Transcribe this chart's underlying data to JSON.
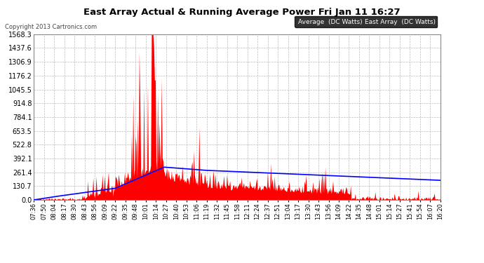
{
  "title": "East Array Actual & Running Average Power Fri Jan 11 16:27",
  "copyright": "Copyright 2013 Cartronics.com",
  "legend_label_avg": "Average  (DC Watts)",
  "legend_label_east": "East Array  (DC Watts)",
  "ylabel_values": [
    0.0,
    130.7,
    261.4,
    392.1,
    522.8,
    653.5,
    784.1,
    914.8,
    1045.5,
    1176.2,
    1306.9,
    1437.6,
    1568.3
  ],
  "ymax": 1568.3,
  "background_color": "#ffffff",
  "plot_bg_color": "#ffffff",
  "grid_color": "#bbbbbb",
  "east_array_color": "#ff0000",
  "avg_color": "#0000ff",
  "title_color": "#000000",
  "tick_label_color": "#000000",
  "n_points": 530,
  "time_labels": [
    "07:36",
    "07:50",
    "08:04",
    "08:17",
    "08:30",
    "08:43",
    "08:56",
    "09:09",
    "09:22",
    "09:35",
    "09:48",
    "10:01",
    "10:14",
    "10:27",
    "10:40",
    "10:53",
    "11:06",
    "11:19",
    "11:32",
    "11:45",
    "11:58",
    "12:11",
    "12:24",
    "12:37",
    "12:51",
    "13:04",
    "13:17",
    "13:30",
    "13:43",
    "13:56",
    "14:09",
    "14:22",
    "14:35",
    "14:48",
    "15:01",
    "15:14",
    "15:27",
    "15:41",
    "15:54",
    "16:07",
    "16:20"
  ]
}
